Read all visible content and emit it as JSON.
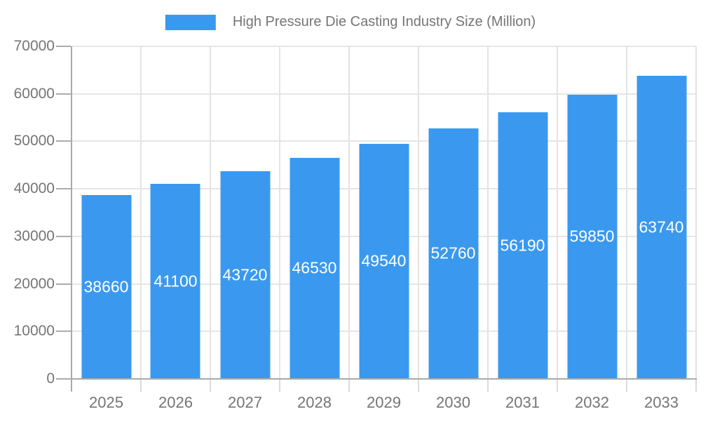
{
  "legend": {
    "label": "High Pressure Die Casting Industry Size (Million)"
  },
  "colors": {
    "bar": "#3A99EE",
    "text": "#757575",
    "bar_label": "#FFFFFF",
    "grid_horizontal": "#E6E6E6",
    "grid_vertical": "#E3E3E3",
    "axis_line": "#A9A9A9",
    "y_tick": "#ABABAB",
    "x_tick": "#DBDBDB"
  },
  "chart_data": {
    "type": "bar",
    "title": "High Pressure Die Casting Industry Size (Million)",
    "categories": [
      "2025",
      "2026",
      "2027",
      "2028",
      "2029",
      "2030",
      "2031",
      "2032",
      "2033"
    ],
    "values": [
      38660,
      41100,
      43720,
      46530,
      49540,
      52760,
      56190,
      59850,
      63740
    ],
    "xlabel": "",
    "ylabel": "",
    "ylim": [
      0,
      70000
    ],
    "yticks": [
      0,
      10000,
      20000,
      30000,
      40000,
      50000,
      60000,
      70000
    ],
    "grid": "both",
    "legend_position": "top-center",
    "bar_label_position": "inside-center"
  }
}
